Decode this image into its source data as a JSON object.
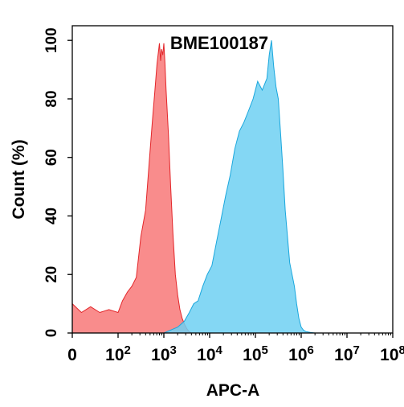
{
  "chart_data": {
    "type": "area",
    "title": "BME100187",
    "xlabel": "APC-A",
    "ylabel": "Count (%)",
    "x_scale": "biexponential",
    "xlim": [
      0,
      100000000
    ],
    "ylim": [
      0,
      105
    ],
    "grid": false,
    "x_ticks": [
      {
        "value": 0,
        "base": "0",
        "exp": ""
      },
      {
        "value": 100,
        "base": "10",
        "exp": "2"
      },
      {
        "value": 1000,
        "base": "10",
        "exp": "3"
      },
      {
        "value": 10000,
        "base": "10",
        "exp": "4"
      },
      {
        "value": 100000,
        "base": "10",
        "exp": "5"
      },
      {
        "value": 1000000,
        "base": "10",
        "exp": "6"
      },
      {
        "value": 10000000,
        "base": "10",
        "exp": "7"
      },
      {
        "value": 100000000,
        "base": "10",
        "exp": "8"
      }
    ],
    "y_ticks": [
      {
        "value": 0,
        "label": "0"
      },
      {
        "value": 20,
        "label": "20"
      },
      {
        "value": 40,
        "label": "40"
      },
      {
        "value": 60,
        "label": "60"
      },
      {
        "value": 80,
        "label": "80"
      },
      {
        "value": 100,
        "label": "100"
      }
    ],
    "series": [
      {
        "fill": "#f87878",
        "stroke": "#e3262a",
        "x": [
          0,
          20,
          40,
          60,
          80,
          100,
          125,
          160,
          200,
          250,
          315,
          400,
          500,
          560,
          630,
          710,
          800,
          850,
          890,
          950,
          1000,
          1060,
          1120,
          1260,
          1410,
          1580,
          1780,
          2000,
          2240,
          2510,
          2820,
          3160,
          3550,
          4000
        ],
        "y": [
          10,
          7,
          9,
          7,
          8,
          7,
          11,
          14,
          16,
          19,
          33,
          42,
          62,
          72,
          82,
          92,
          99,
          93,
          97,
          95,
          99,
          92,
          83,
          68,
          50,
          34,
          20,
          13,
          8,
          5,
          3,
          1.5,
          0.5,
          0
        ]
      },
      {
        "fill": "#6fd0f2",
        "stroke": "#1aa7dd",
        "x": [
          1000,
          1400,
          2000,
          2800,
          3600,
          4500,
          5600,
          7100,
          8900,
          11200,
          14100,
          17800,
          22400,
          28200,
          35500,
          44700,
          56200,
          70800,
          89100,
          112000,
          141000,
          178000,
          200000,
          224000,
          251000,
          282000,
          316000,
          355000,
          398000,
          447000,
          501000,
          562000,
          631000,
          708000,
          794000,
          891000,
          1000000,
          1120000,
          1260000,
          1580000,
          2000000
        ],
        "y": [
          0,
          1,
          2,
          4,
          7,
          10,
          11,
          16,
          20,
          23,
          31,
          39,
          47,
          54,
          63,
          69,
          72,
          76,
          80,
          86,
          83,
          87,
          95,
          100,
          91,
          84,
          80,
          68,
          56,
          42,
          33,
          24,
          20,
          16,
          10,
          5,
          2,
          1,
          0.5,
          0.2,
          0
        ]
      }
    ]
  }
}
